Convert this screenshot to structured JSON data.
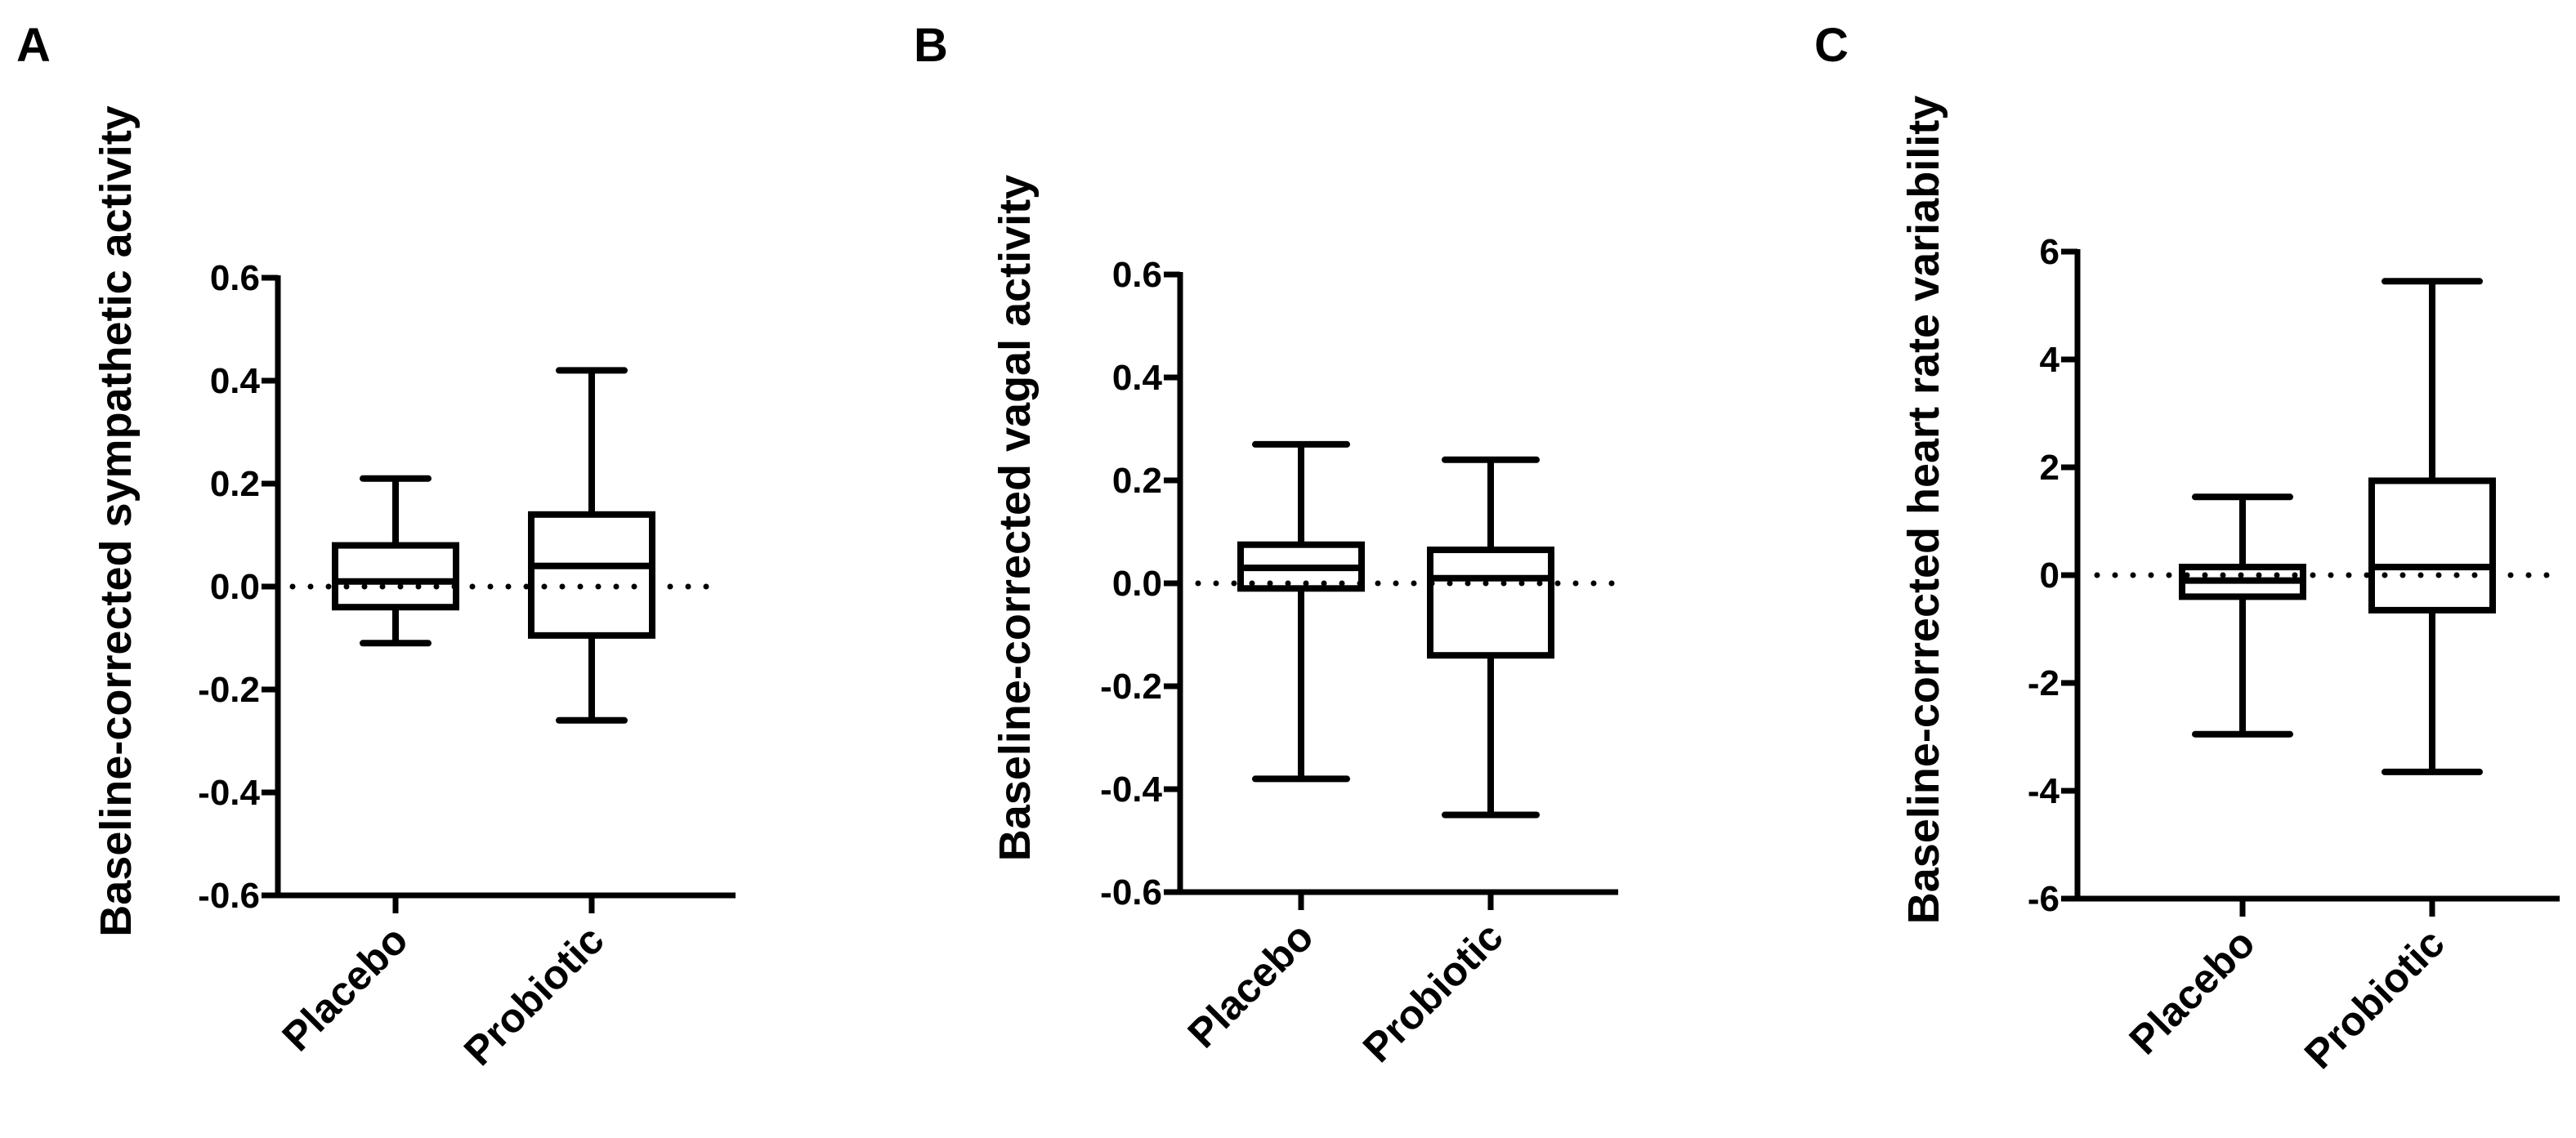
{
  "chart_data": [
    {
      "panel": "A",
      "type": "box",
      "categories": [
        "Placebo",
        "Probiotic"
      ],
      "ylabel": "Baseline-corrected sympathetic activity",
      "ylim": [
        -0.6,
        0.6
      ],
      "yticks": [
        "-0.6",
        "-0.4",
        "-0.2",
        "0.0",
        "0.2",
        "0.4",
        "0.6"
      ],
      "ytick_values": [
        -0.6,
        -0.4,
        -0.2,
        0.0,
        0.2,
        0.4,
        0.6
      ],
      "reference_line": 0,
      "boxes": [
        {
          "category": "Placebo",
          "min": -0.11,
          "q1": -0.04,
          "median": 0.01,
          "q3": 0.08,
          "max": 0.21
        },
        {
          "category": "Probiotic",
          "min": -0.26,
          "q1": -0.095,
          "median": 0.04,
          "q3": 0.14,
          "max": 0.42
        }
      ]
    },
    {
      "panel": "B",
      "type": "box",
      "categories": [
        "Placebo",
        "Probiotic"
      ],
      "ylabel": "Baseline-corrected vagal activity",
      "ylim": [
        -0.6,
        0.6
      ],
      "yticks": [
        "-0.6",
        "-0.4",
        "-0.2",
        "0.0",
        "0.2",
        "0.4",
        "0.6"
      ],
      "ytick_values": [
        -0.6,
        -0.4,
        -0.2,
        0.0,
        0.2,
        0.4,
        0.6
      ],
      "reference_line": 0,
      "boxes": [
        {
          "category": "Placebo",
          "min": -0.38,
          "q1": -0.01,
          "median": 0.03,
          "q3": 0.075,
          "max": 0.27
        },
        {
          "category": "Probiotic",
          "min": -0.45,
          "q1": -0.14,
          "median": 0.01,
          "q3": 0.065,
          "max": 0.24
        }
      ]
    },
    {
      "panel": "C",
      "type": "box",
      "categories": [
        "Placebo",
        "Probiotic"
      ],
      "ylabel": "Baseline-corrected heart rate variability",
      "ylim": [
        -6,
        6
      ],
      "yticks": [
        "-6",
        "-4",
        "-2",
        "0",
        "2",
        "4",
        "6"
      ],
      "ytick_values": [
        -6,
        -4,
        -2,
        0,
        2,
        4,
        6
      ],
      "reference_line": 0,
      "boxes": [
        {
          "category": "Placebo",
          "min": -2.95,
          "q1": -0.4,
          "median": -0.1,
          "q3": 0.15,
          "max": 1.45
        },
        {
          "category": "Probiotic",
          "min": -3.65,
          "q1": -0.65,
          "median": 0.15,
          "q3": 1.75,
          "max": 5.45
        }
      ]
    }
  ]
}
